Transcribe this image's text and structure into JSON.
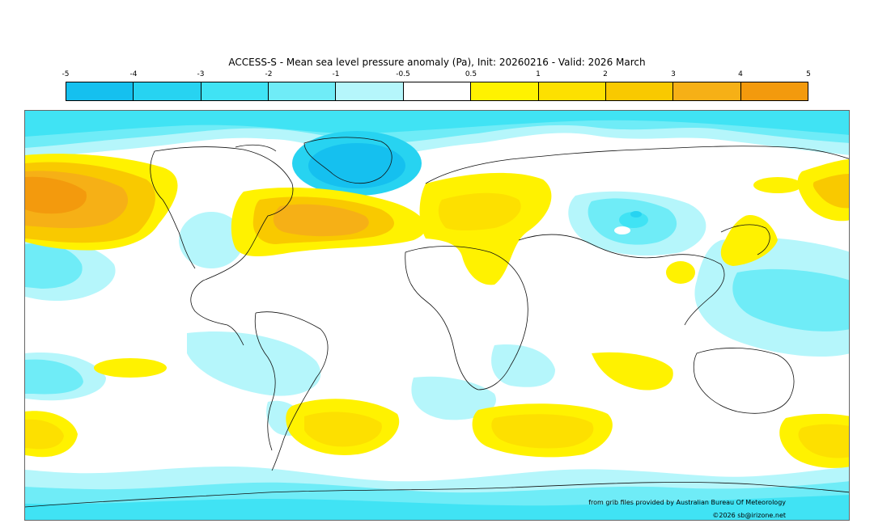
{
  "title": "ACCESS-S - Mean sea level pressure anomaly (Pa), Init: 20260216 - Valid: 2026 March",
  "colorbar": {
    "ticks": [
      "-5",
      "-4",
      "-3",
      "-2",
      "-1",
      "-0.5",
      "0.5",
      "1",
      "2",
      "3",
      "4",
      "5"
    ],
    "colors": [
      "#15c0ef",
      "#27d3f1",
      "#40e3f4",
      "#6fecf7",
      "#b5f6fb",
      "#ffffff",
      "#fff200",
      "#fde000",
      "#f9c900",
      "#f6b016",
      "#f39a0d"
    ]
  },
  "credits": {
    "source": "from grib files provided by Australian Bureau Of Meteorology",
    "copyright": "©2026 sb@irizone.net"
  }
}
